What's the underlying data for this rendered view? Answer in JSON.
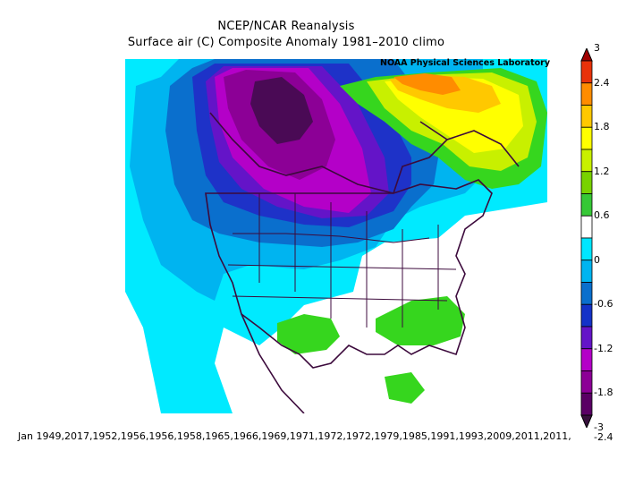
{
  "header": {
    "title": "NCEP/NCAR Reanalysis",
    "subtitle": "Surface air (C) Composite Anomaly 1981–2010 climo",
    "credit": "NOAA Physical Sciences Laboratory"
  },
  "footer": {
    "years_text": "Jan 1949,2017,1952,1956,1956,1958,1965,1966,1969,1971,1972,1972,1979,1985,1991,1993,2009,2011,2011,"
  },
  "colorbar": {
    "labels": [
      "3",
      "2.4",
      "1.8",
      "1.2",
      "0.6",
      "0",
      "-0.6",
      "-1.2",
      "-1.8",
      "-2.4",
      "-3"
    ],
    "colors": [
      "#a00000",
      "#e8320a",
      "#ff8c00",
      "#ffc800",
      "#ffff00",
      "#c8f000",
      "#78d200",
      "#36c836",
      "#ffffff",
      "#00e6ff",
      "#00b4f0",
      "#0a6fcd",
      "#1432c8",
      "#6414c8",
      "#b400c8",
      "#8c0096",
      "#5a0064",
      "#37103c"
    ]
  },
  "map": {
    "region": "North America",
    "palette": {
      "cyan": "#00eaff",
      "light_blue": "#00b4f0",
      "blue": "#0a6fcd",
      "dark_blue": "#1e32c8",
      "violet": "#6414c8",
      "magenta": "#b400c8",
      "purple": "#8c0096",
      "dark_purple": "#4a0a55",
      "green": "#36d61e",
      "lime": "#c8f000",
      "yellow": "#ffff00",
      "gold": "#ffc800",
      "orange": "#ff8c00",
      "border": "#3c0a3c"
    }
  }
}
